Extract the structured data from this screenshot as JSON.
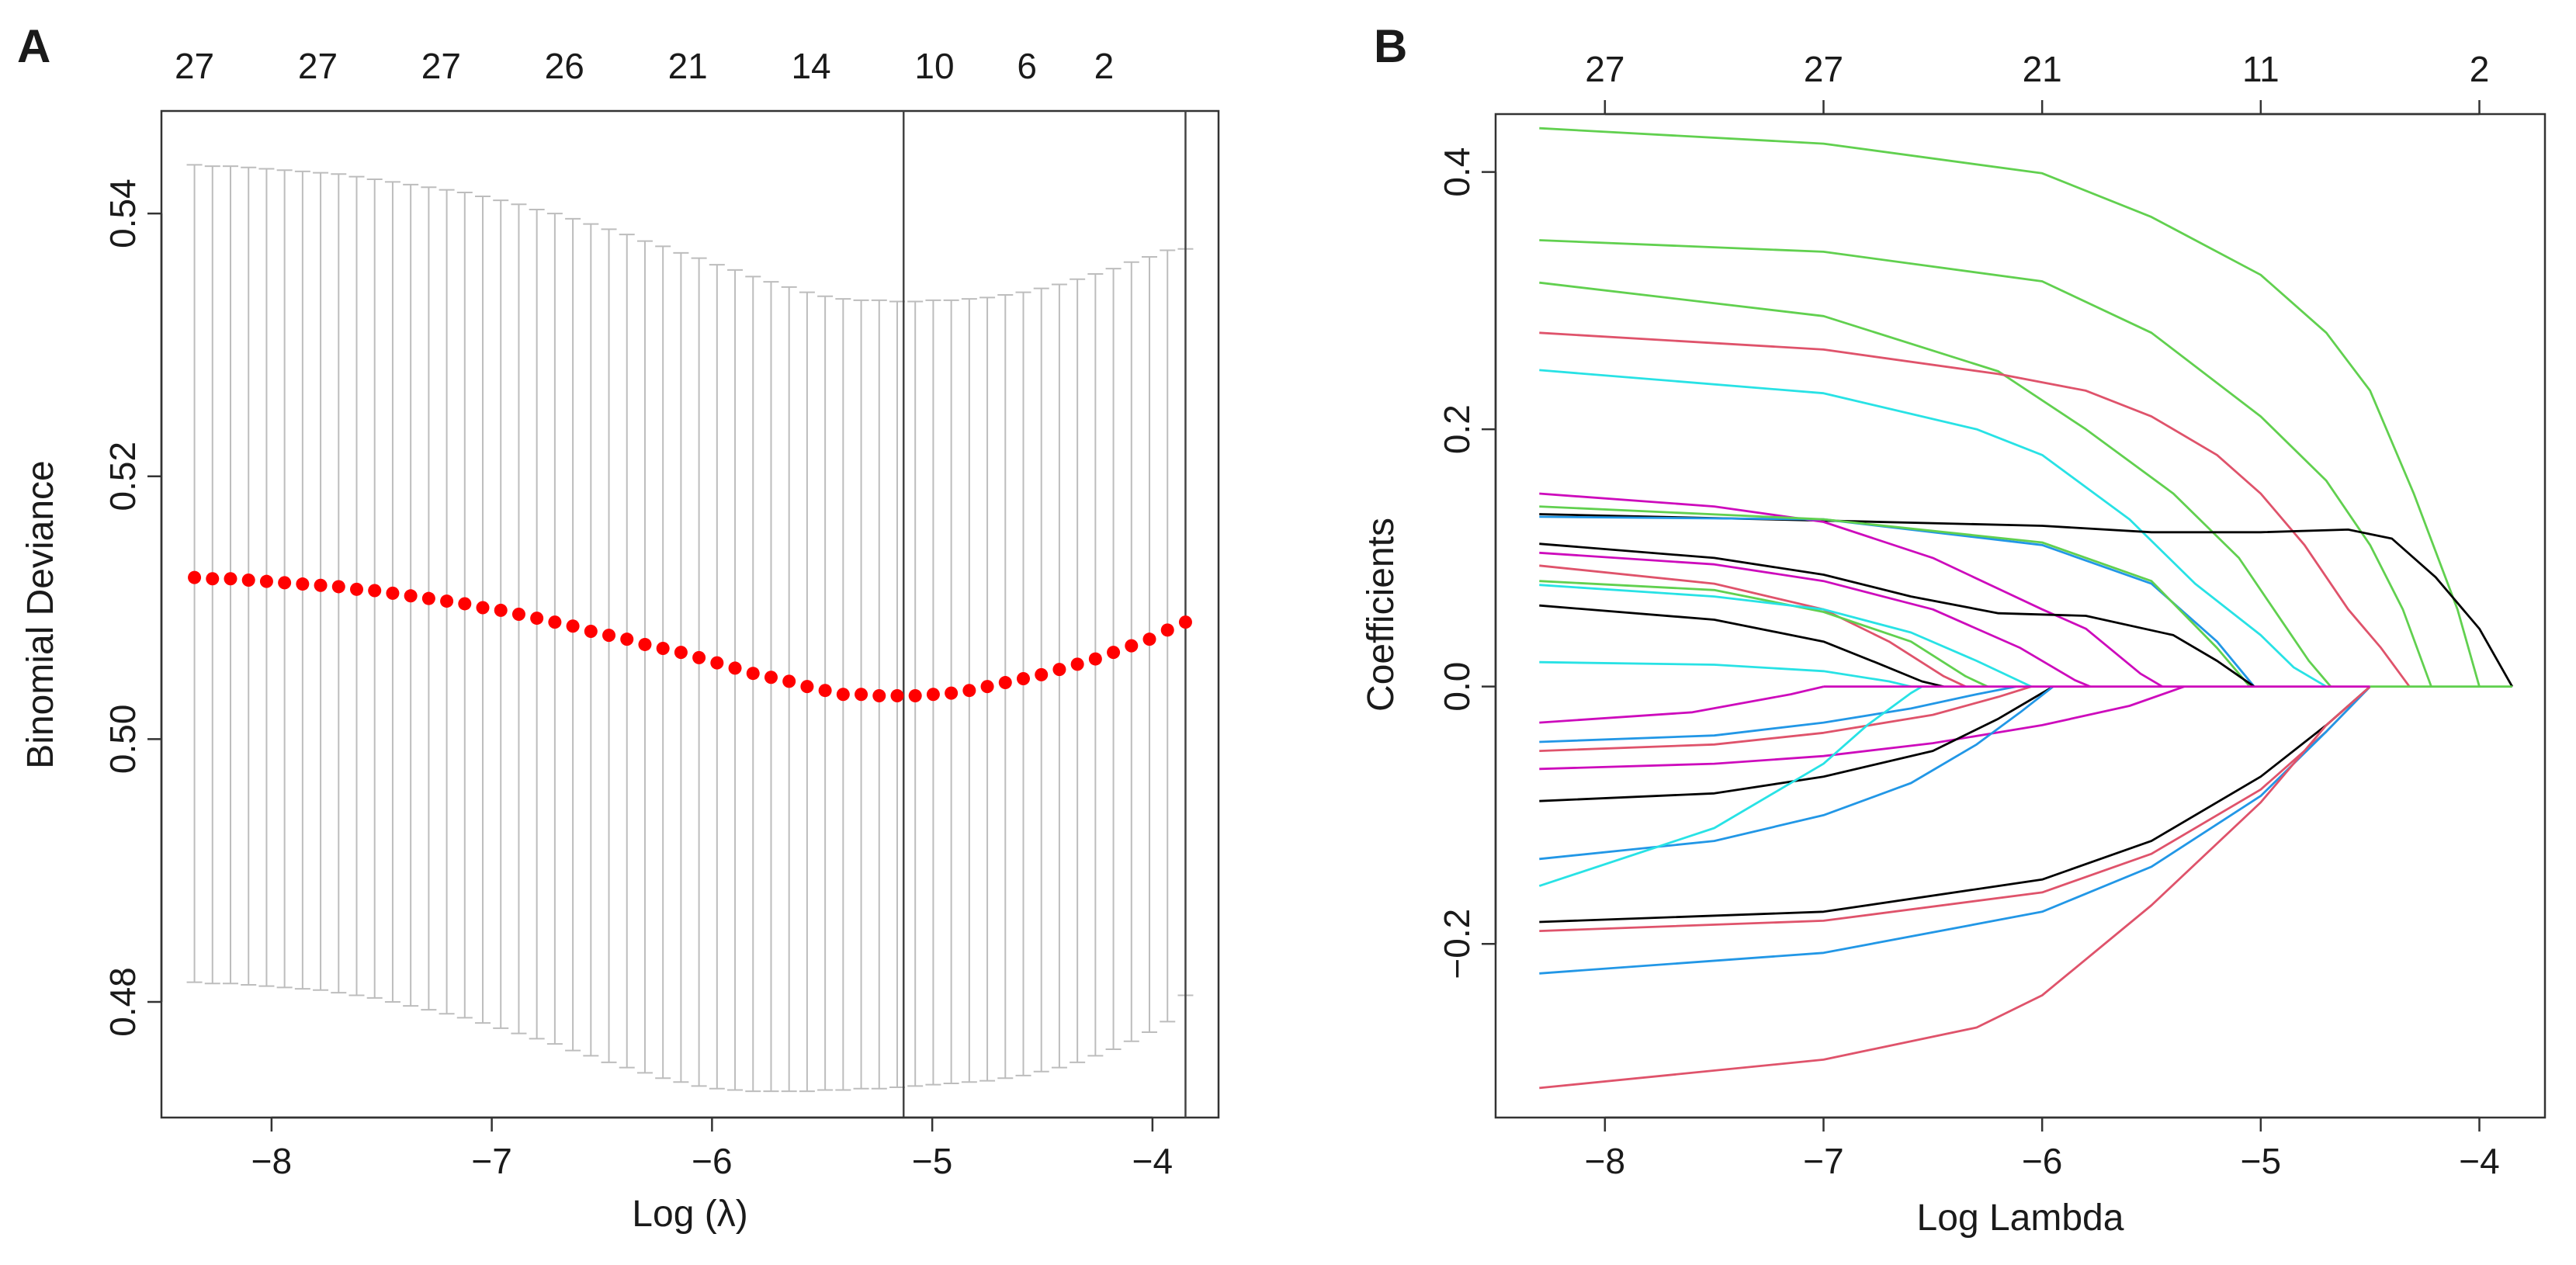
{
  "chart_data": [
    {
      "type": "scatter",
      "panel_label": "A",
      "xlabel": "Log (λ)",
      "ylabel": "Binomial Deviance",
      "xlim": [
        -8.5,
        -3.7
      ],
      "ylim": [
        0.4712,
        0.5478
      ],
      "x_ticks": [
        "-8",
        "-7",
        "-6",
        "-5",
        "-4"
      ],
      "y_ticks": [
        "0.48",
        "0.50",
        "0.52",
        "0.54"
      ],
      "top_ticks": [
        {
          "x": -8.35,
          "label": "27"
        },
        {
          "x": -7.79,
          "label": "27"
        },
        {
          "x": -7.23,
          "label": "27"
        },
        {
          "x": -6.67,
          "label": "26"
        },
        {
          "x": -6.11,
          "label": "21"
        },
        {
          "x": -5.55,
          "label": "14"
        },
        {
          "x": -4.99,
          "label": "10"
        },
        {
          "x": -4.57,
          "label": "6"
        },
        {
          "x": -4.22,
          "label": "2"
        }
      ],
      "lambda_min_log": -5.13,
      "lambda_1se_log": -3.85,
      "point_color": "#ff0000",
      "errorbar_color": "#bdbdbd",
      "cv_x_start": -8.35,
      "cv_x_end": -3.85,
      "cv_mean": [
        0.5123,
        0.5122,
        0.5122,
        0.5121,
        0.512,
        0.5119,
        0.5118,
        0.5117,
        0.5116,
        0.5114,
        0.5113,
        0.5111,
        0.5109,
        0.5107,
        0.5105,
        0.5103,
        0.51,
        0.5098,
        0.5095,
        0.5092,
        0.5089,
        0.5086,
        0.5082,
        0.5079,
        0.5076,
        0.5072,
        0.5069,
        0.5066,
        0.5062,
        0.5058,
        0.5054,
        0.505,
        0.5047,
        0.5044,
        0.504,
        0.5037,
        0.5034,
        0.5034,
        0.5033,
        0.5033,
        0.5033,
        0.5034,
        0.5035,
        0.5037,
        0.504,
        0.5043,
        0.5046,
        0.5049,
        0.5053,
        0.5057,
        0.5061,
        0.5066,
        0.5071,
        0.5076,
        0.5083,
        0.5089
      ],
      "cv_upper": [
        0.5437,
        0.5436,
        0.5436,
        0.5435,
        0.5434,
        0.5433,
        0.5432,
        0.5431,
        0.543,
        0.5428,
        0.5426,
        0.5424,
        0.5422,
        0.542,
        0.5418,
        0.5416,
        0.5413,
        0.541,
        0.5407,
        0.5403,
        0.54,
        0.5396,
        0.5392,
        0.5388,
        0.5384,
        0.5379,
        0.5375,
        0.537,
        0.5366,
        0.5361,
        0.5357,
        0.5352,
        0.5348,
        0.5344,
        0.534,
        0.5337,
        0.5335,
        0.5334,
        0.5334,
        0.5333,
        0.5333,
        0.5334,
        0.5334,
        0.5335,
        0.5336,
        0.5338,
        0.534,
        0.5343,
        0.5346,
        0.535,
        0.5354,
        0.5358,
        0.5363,
        0.5367,
        0.5372,
        0.5373
      ],
      "cv_lower": [
        0.4815,
        0.4814,
        0.4814,
        0.4813,
        0.4812,
        0.4811,
        0.481,
        0.4809,
        0.4807,
        0.4805,
        0.4803,
        0.48,
        0.4797,
        0.4794,
        0.4791,
        0.4788,
        0.4784,
        0.478,
        0.4776,
        0.4772,
        0.4768,
        0.4763,
        0.4759,
        0.4754,
        0.475,
        0.4746,
        0.4742,
        0.4739,
        0.4736,
        0.4734,
        0.4733,
        0.4732,
        0.4732,
        0.4732,
        0.4732,
        0.4733,
        0.4733,
        0.4734,
        0.4734,
        0.4735,
        0.4736,
        0.4737,
        0.4738,
        0.4739,
        0.474,
        0.4742,
        0.4744,
        0.4747,
        0.475,
        0.4754,
        0.4759,
        0.4764,
        0.477,
        0.4777,
        0.4785,
        0.4805
      ]
    },
    {
      "type": "line",
      "panel_label": "B",
      "xlabel": "Log Lambda",
      "ylabel": "Coefficients",
      "xlim": [
        -8.5,
        -3.7
      ],
      "ylim": [
        -0.335,
        0.445
      ],
      "x_ticks": [
        "-8",
        "-7",
        "-6",
        "-5",
        "-4"
      ],
      "y_ticks": [
        "-0.2",
        "0.0",
        "0.2",
        "0.4"
      ],
      "top_ticks": [
        {
          "x": -8.0,
          "label": "27"
        },
        {
          "x": -7.0,
          "label": "27"
        },
        {
          "x": -6.0,
          "label": "21"
        },
        {
          "x": -5.0,
          "label": "11"
        },
        {
          "x": -4.0,
          "label": "2"
        }
      ],
      "series": [
        {
          "name": "green-1",
          "color": "#61d04f",
          "x": [
            -8.3,
            -7,
            -6,
            -5.5,
            -5,
            -4.7,
            -4.5,
            -4.3,
            -4.1,
            -4.0
          ],
          "values": [
            0.434,
            0.422,
            0.399,
            0.365,
            0.32,
            0.275,
            0.23,
            0.15,
            0.06,
            0.0
          ]
        },
        {
          "name": "green-2",
          "color": "#61d04f",
          "x": [
            -8.3,
            -7,
            -6,
            -5.5,
            -5,
            -4.7,
            -4.5,
            -4.35,
            -4.22
          ],
          "values": [
            0.347,
            0.338,
            0.315,
            0.275,
            0.21,
            0.16,
            0.11,
            0.06,
            0.0
          ]
        },
        {
          "name": "green-3",
          "color": "#61d04f",
          "x": [
            -8.3,
            -7,
            -6.2,
            -5.8,
            -5.4,
            -5.1,
            -4.9,
            -4.78,
            -4.68
          ],
          "values": [
            0.314,
            0.288,
            0.245,
            0.2,
            0.15,
            0.1,
            0.05,
            0.02,
            0.0
          ]
        },
        {
          "name": "red-1",
          "color": "#df536b",
          "x": [
            -8.3,
            -7,
            -6.2,
            -5.8,
            -5.5,
            -5.2,
            -5.0,
            -4.8,
            -4.6,
            -4.45,
            -4.32
          ],
          "values": [
            0.275,
            0.262,
            0.243,
            0.23,
            0.21,
            0.18,
            0.15,
            0.11,
            0.06,
            0.03,
            0.0
          ]
        },
        {
          "name": "cyan-1",
          "color": "#28e2e5",
          "x": [
            -8.3,
            -7,
            -6.3,
            -6.0,
            -5.6,
            -5.3,
            -5.0,
            -4.85,
            -4.7
          ],
          "values": [
            0.246,
            0.228,
            0.2,
            0.18,
            0.13,
            0.08,
            0.04,
            0.015,
            0.0
          ]
        },
        {
          "name": "black-1",
          "color": "#000000",
          "x": [
            -8.3,
            -7,
            -6,
            -5.5,
            -5,
            -4.6,
            -4.4,
            -4.2,
            -4.0,
            -3.85
          ],
          "values": [
            0.134,
            0.129,
            0.125,
            0.12,
            0.12,
            0.122,
            0.115,
            0.085,
            0.045,
            0.0
          ]
        },
        {
          "name": "magenta-1",
          "color": "#cd0bbc",
          "x": [
            -8.3,
            -7.5,
            -7,
            -6.5,
            -6.0,
            -5.8,
            -5.55,
            -5.45
          ],
          "values": [
            0.15,
            0.14,
            0.128,
            0.1,
            0.06,
            0.045,
            0.01,
            0.0
          ]
        },
        {
          "name": "blue-1",
          "color": "#2297e6",
          "x": [
            -8.3,
            -7,
            -6,
            -5.5,
            -5.2,
            -5.03
          ],
          "values": [
            0.132,
            0.13,
            0.11,
            0.08,
            0.035,
            0.0
          ]
        },
        {
          "name": "green-4",
          "color": "#61d04f",
          "x": [
            -8.3,
            -7,
            -6,
            -5.5,
            -5.2,
            -5.05
          ],
          "values": [
            0.14,
            0.13,
            0.112,
            0.082,
            0.03,
            0.0
          ]
        },
        {
          "name": "black-2",
          "color": "#000000",
          "x": [
            -8.3,
            -7.5,
            -7,
            -6.6,
            -6.2,
            -5.8,
            -5.4,
            -5.2,
            -5.03
          ],
          "values": [
            0.111,
            0.1,
            0.087,
            0.07,
            0.057,
            0.055,
            0.04,
            0.02,
            0.0
          ]
        },
        {
          "name": "magenta-2",
          "color": "#cd0bbc",
          "x": [
            -8.3,
            -7.5,
            -7,
            -6.5,
            -6.1,
            -5.85,
            -5.78
          ],
          "values": [
            0.104,
            0.095,
            0.082,
            0.06,
            0.03,
            0.005,
            0.0
          ]
        },
        {
          "name": "red-2",
          "color": "#df536b",
          "x": [
            -8.3,
            -7.5,
            -7,
            -6.7,
            -6.45,
            -6.35
          ],
          "values": [
            0.094,
            0.08,
            0.06,
            0.035,
            0.008,
            0.0
          ]
        },
        {
          "name": "green-5",
          "color": "#61d04f",
          "x": [
            -8.3,
            -7.5,
            -7,
            -6.6,
            -6.35,
            -6.25
          ],
          "values": [
            0.082,
            0.075,
            0.058,
            0.035,
            0.008,
            0.0
          ]
        },
        {
          "name": "cyan-2",
          "color": "#28e2e5",
          "x": [
            -8.3,
            -7.5,
            -7,
            -6.6,
            -6.3,
            -6.1,
            -6.05
          ],
          "values": [
            0.079,
            0.07,
            0.06,
            0.042,
            0.02,
            0.004,
            0.0
          ]
        },
        {
          "name": "black-3",
          "color": "#000000",
          "x": [
            -8.3,
            -7.5,
            -7.0,
            -6.75,
            -6.55,
            -6.45
          ],
          "values": [
            0.063,
            0.052,
            0.035,
            0.018,
            0.004,
            0.0
          ]
        },
        {
          "name": "cyan-3",
          "color": "#28e2e5",
          "x": [
            -8.3,
            -7.5,
            -7,
            -6.7,
            -6.6
          ],
          "values": [
            0.019,
            0.017,
            0.012,
            0.004,
            0.0
          ]
        },
        {
          "name": "magenta-3",
          "color": "#cd0bbc",
          "x": [
            -8.3,
            -7.6,
            -7.15,
            -7.0
          ],
          "values": [
            -0.028,
            -0.02,
            -0.006,
            0.0
          ]
        },
        {
          "name": "blue-2",
          "color": "#2297e6",
          "x": [
            -8.3,
            -7.5,
            -7,
            -6.6,
            -6.3,
            -6.12
          ],
          "values": [
            -0.043,
            -0.038,
            -0.028,
            -0.017,
            -0.006,
            0.0
          ]
        },
        {
          "name": "red-3",
          "color": "#df536b",
          "x": [
            -8.3,
            -7.5,
            -7,
            -6.5,
            -6.2,
            -6.05
          ],
          "values": [
            -0.05,
            -0.045,
            -0.036,
            -0.022,
            -0.008,
            0.0
          ]
        },
        {
          "name": "magenta-4",
          "color": "#cd0bbc",
          "x": [
            -8.3,
            -7.5,
            -7,
            -6.5,
            -6.0,
            -5.6,
            -5.35
          ],
          "values": [
            -0.064,
            -0.06,
            -0.054,
            -0.044,
            -0.03,
            -0.015,
            0.0
          ]
        },
        {
          "name": "black-4",
          "color": "#000000",
          "x": [
            -8.3,
            -7.5,
            -7,
            -6.5,
            -6.2,
            -6.0,
            -5.95
          ],
          "values": [
            -0.089,
            -0.083,
            -0.07,
            -0.05,
            -0.025,
            -0.005,
            0.0
          ]
        },
        {
          "name": "blue-3",
          "color": "#2297e6",
          "x": [
            -8.3,
            -7.5,
            -7,
            -6.6,
            -6.3,
            -6.1,
            -5.95
          ],
          "values": [
            -0.134,
            -0.12,
            -0.1,
            -0.075,
            -0.045,
            -0.02,
            0.0
          ]
        },
        {
          "name": "cyan-4",
          "color": "#28e2e5",
          "x": [
            -8.3,
            -7.5,
            -7.0,
            -6.8,
            -6.6,
            -6.55
          ],
          "values": [
            -0.155,
            -0.11,
            -0.06,
            -0.03,
            -0.005,
            0.0
          ]
        },
        {
          "name": "black-5",
          "color": "#000000",
          "x": [
            -8.3,
            -7,
            -6,
            -5.5,
            -5,
            -4.7,
            -4.5
          ],
          "values": [
            -0.183,
            -0.175,
            -0.15,
            -0.12,
            -0.07,
            -0.03,
            0.0
          ]
        },
        {
          "name": "red-4",
          "color": "#df536b",
          "x": [
            -8.3,
            -7,
            -6,
            -5.5,
            -5,
            -4.7,
            -4.5
          ],
          "values": [
            -0.19,
            -0.182,
            -0.16,
            -0.13,
            -0.08,
            -0.035,
            0.0
          ]
        },
        {
          "name": "blue-4",
          "color": "#2297e6",
          "x": [
            -8.3,
            -7,
            -6,
            -5.5,
            -5,
            -4.7,
            -4.5
          ],
          "values": [
            -0.223,
            -0.207,
            -0.175,
            -0.14,
            -0.085,
            -0.035,
            0.0
          ]
        },
        {
          "name": "red-5",
          "color": "#df536b",
          "x": [
            -8.3,
            -7,
            -6.3,
            -6.0,
            -5.5,
            -5.0,
            -4.7,
            -4.5
          ],
          "values": [
            -0.312,
            -0.29,
            -0.265,
            -0.24,
            -0.17,
            -0.09,
            -0.03,
            0.0
          ]
        },
        {
          "name": "magenta-zero",
          "color": "#cd0bbc",
          "x": [
            -7.0,
            -4.5
          ],
          "values": [
            0.0,
            0.0
          ]
        },
        {
          "name": "green-zero",
          "color": "#61d04f",
          "x": [
            -4.5,
            -3.85
          ],
          "values": [
            0.0,
            0.0
          ]
        }
      ]
    }
  ]
}
